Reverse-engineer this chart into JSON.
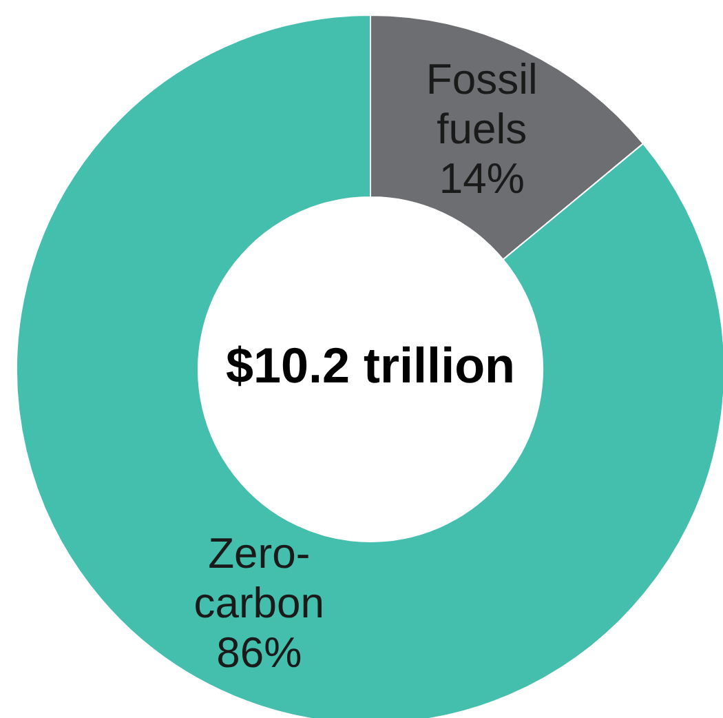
{
  "chart_data": {
    "type": "donut",
    "categories": [
      "Fossil fuels",
      "Zero-carbon"
    ],
    "values": [
      14,
      86
    ],
    "colors": [
      "#6d6e71",
      "#45bfad"
    ],
    "value_labels": [
      "14%",
      "86%"
    ],
    "annotations": [
      "$10.2 trillion"
    ]
  }
}
